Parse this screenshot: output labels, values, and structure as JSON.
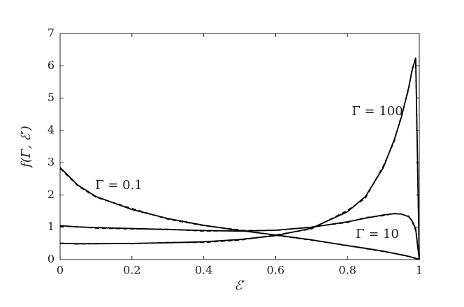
{
  "chart_data": {
    "type": "line",
    "xlabel": "ℰ′",
    "ylabel": "f(Γ, ℰ′)",
    "x": [
      0,
      0.05,
      0.1,
      0.2,
      0.3,
      0.4,
      0.5,
      0.6,
      0.7,
      0.8,
      0.85,
      0.9,
      0.93,
      0.95,
      0.97,
      0.98,
      0.99,
      1.0
    ],
    "series": [
      {
        "color": "#000000",
        "dash": false,
        "values": [
          2.85,
          2.3,
          1.95,
          1.55,
          1.27,
          1.06,
          0.9,
          0.76,
          0.61,
          0.43,
          0.35,
          0.26,
          0.19,
          0.15,
          0.1,
          0.07,
          0.04,
          0
        ]
      },
      {
        "color": "#000000",
        "dash": false,
        "values": [
          1.05,
          1.01,
          0.99,
          0.96,
          0.93,
          0.9,
          0.88,
          0.91,
          1.0,
          1.17,
          1.28,
          1.38,
          1.42,
          1.41,
          1.33,
          1.2,
          0.95,
          0
        ]
      },
      {
        "color": "#000000",
        "dash": false,
        "values": [
          0.5,
          0.49,
          0.49,
          0.5,
          0.52,
          0.55,
          0.62,
          0.74,
          0.97,
          1.48,
          1.95,
          2.85,
          3.7,
          4.4,
          5.3,
          5.85,
          6.25,
          0
        ]
      },
      {
        "color": "#000000",
        "dash": true,
        "values": [
          2.82,
          2.28,
          1.93,
          1.58,
          1.25,
          1.05,
          0.92,
          0.75,
          0.6,
          0.44,
          0.34,
          0.25,
          0.2,
          0.14,
          0.1,
          0.06,
          0.03,
          0
        ]
      },
      {
        "color": "#000000",
        "dash": true,
        "values": [
          1.03,
          1.02,
          0.97,
          0.95,
          0.94,
          0.88,
          0.9,
          0.9,
          1.01,
          1.15,
          1.3,
          1.36,
          1.43,
          1.4,
          1.35,
          1.18,
          0.9,
          0
        ]
      },
      {
        "color": "#000000",
        "dash": true,
        "values": [
          0.51,
          0.48,
          0.5,
          0.49,
          0.53,
          0.53,
          0.6,
          0.76,
          0.95,
          1.52,
          1.9,
          2.9,
          3.65,
          4.45,
          5.25,
          5.9,
          6.2,
          0
        ]
      }
    ],
    "annotations": [
      "Γ = 0.1",
      "Γ = 10",
      "Γ = 100"
    ],
    "xlim": [
      0,
      1
    ],
    "ylim": [
      0,
      7
    ],
    "xticks": [
      0,
      0.2,
      0.4,
      0.6,
      0.8,
      1
    ],
    "yticks": [
      0,
      1,
      2,
      3,
      4,
      5,
      6,
      7
    ]
  }
}
